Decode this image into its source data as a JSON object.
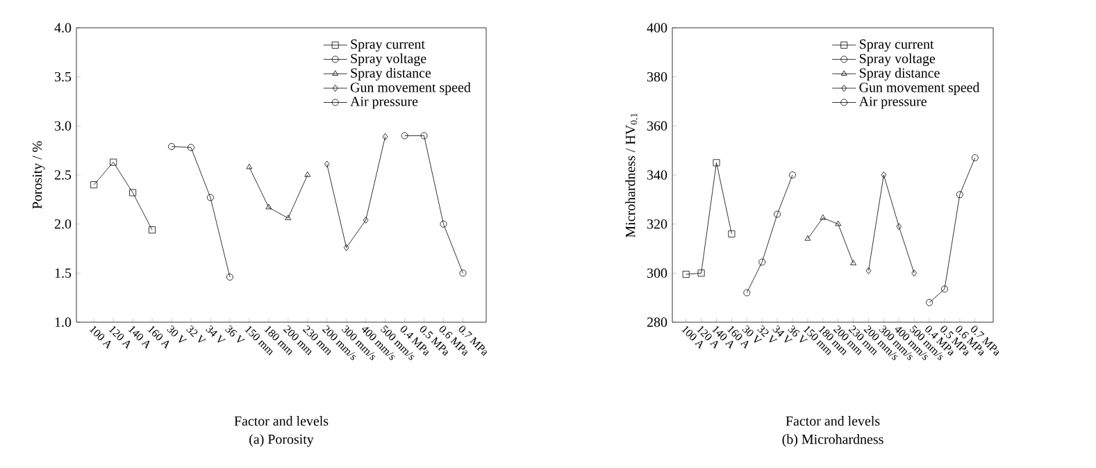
{
  "chart_data": [
    {
      "type": "line",
      "title": "(a) Porosity",
      "xlabel": "Factor and levels",
      "ylabel": "Porosity / %",
      "categories": [
        "100 A",
        "120 A",
        "140 A",
        "160 A",
        "30 V",
        "32 V",
        "34 V",
        "36 V",
        "150 mm",
        "180 mm",
        "200 mm",
        "230 mm",
        "200 mm/s",
        "300 mm/s",
        "400 mm/s",
        "500 mm/s",
        "0.4 MPa",
        "0.5 MPa",
        "0.6 MPa",
        "0.7 MPa"
      ],
      "ylim": [
        1.0,
        4.0
      ],
      "yticks": [
        {
          "value": 1.0,
          "label": "1.0"
        },
        {
          "value": 1.5,
          "label": "1.5"
        },
        {
          "value": 2.0,
          "label": "2.0"
        },
        {
          "value": 2.5,
          "label": "2.5"
        },
        {
          "value": 3.0,
          "label": "3.0"
        },
        {
          "value": 3.5,
          "label": "3.5"
        },
        {
          "value": 4.0,
          "label": "4.0"
        }
      ],
      "legend": "top right",
      "series": [
        {
          "name": "Spray current",
          "color": "#000000",
          "marker": "square",
          "values": [
            2.4,
            2.63,
            2.32,
            1.94,
            null,
            null,
            null,
            null,
            null,
            null,
            null,
            null,
            null,
            null,
            null,
            null,
            null,
            null,
            null,
            null
          ]
        },
        {
          "name": "Spray voltage",
          "color": "#000000",
          "marker": "circle",
          "values": [
            null,
            null,
            null,
            null,
            2.79,
            2.78,
            2.27,
            1.46,
            null,
            null,
            null,
            null,
            null,
            null,
            null,
            null,
            null,
            null,
            null,
            null
          ]
        },
        {
          "name": "Spray distance",
          "color": "#000000",
          "marker": "triangle",
          "values": [
            null,
            null,
            null,
            null,
            null,
            null,
            null,
            null,
            2.58,
            2.17,
            2.06,
            2.5,
            null,
            null,
            null,
            null,
            null,
            null,
            null,
            null
          ]
        },
        {
          "name": "Gun movement speed",
          "color": "#000000",
          "marker": "diamond",
          "values": [
            null,
            null,
            null,
            null,
            null,
            null,
            null,
            null,
            null,
            null,
            null,
            null,
            2.61,
            1.76,
            2.04,
            2.89,
            null,
            null,
            null,
            null
          ]
        },
        {
          "name": "Air pressure",
          "color": "#000000",
          "marker": "circle",
          "values": [
            null,
            null,
            null,
            null,
            null,
            null,
            null,
            null,
            null,
            null,
            null,
            null,
            null,
            null,
            null,
            null,
            2.9,
            2.9,
            2.0,
            1.5
          ]
        }
      ]
    },
    {
      "type": "line",
      "title": "(b) Microhardness",
      "xlabel": "Factor and levels",
      "ylabel": "Microhardness / HV$_{0.1}$",
      "categories": [
        "100 A",
        "120 A",
        "140 A",
        "160 A",
        "30 V",
        "32 V",
        "34 V",
        "36 V",
        "150 mm",
        "180 mm",
        "200 mm",
        "230 mm",
        "200 mm/s",
        "300 mm/s",
        "400 mm/s",
        "500 mm/s",
        "0.4 MPa",
        "0.5 MPa",
        "0.6 MPa",
        "0.7 MPa"
      ],
      "ylim": [
        280,
        400
      ],
      "yticks": [
        280,
        300,
        320,
        340,
        360,
        380,
        400
      ],
      "legend": "top right",
      "series": [
        {
          "name": "Spray current",
          "color": "#000000",
          "marker": "square",
          "values": [
            299.5,
            300,
            345,
            316,
            null,
            null,
            null,
            null,
            null,
            null,
            null,
            null,
            null,
            null,
            null,
            null,
            null,
            null,
            null,
            null
          ]
        },
        {
          "name": "Spray voltage",
          "color": "#000000",
          "marker": "circle",
          "values": [
            null,
            null,
            null,
            null,
            292,
            304.5,
            324,
            340,
            null,
            null,
            null,
            null,
            null,
            null,
            null,
            null,
            null,
            null,
            null,
            null
          ]
        },
        {
          "name": "Spray distance",
          "color": "#000000",
          "marker": "triangle",
          "values": [
            null,
            null,
            null,
            null,
            null,
            null,
            null,
            null,
            314,
            322.5,
            320,
            304,
            null,
            null,
            null,
            null,
            null,
            null,
            null,
            null
          ]
        },
        {
          "name": "Gun movement speed",
          "color": "#000000",
          "marker": "diamond",
          "values": [
            null,
            null,
            null,
            null,
            null,
            null,
            null,
            null,
            null,
            null,
            null,
            null,
            301,
            340,
            319,
            300,
            null,
            null,
            null,
            null
          ]
        },
        {
          "name": "Air pressure",
          "color": "#000000",
          "marker": "circle",
          "values": [
            null,
            null,
            null,
            null,
            null,
            null,
            null,
            null,
            null,
            null,
            null,
            null,
            null,
            null,
            null,
            null,
            288,
            293.5,
            332,
            347
          ]
        }
      ]
    }
  ]
}
